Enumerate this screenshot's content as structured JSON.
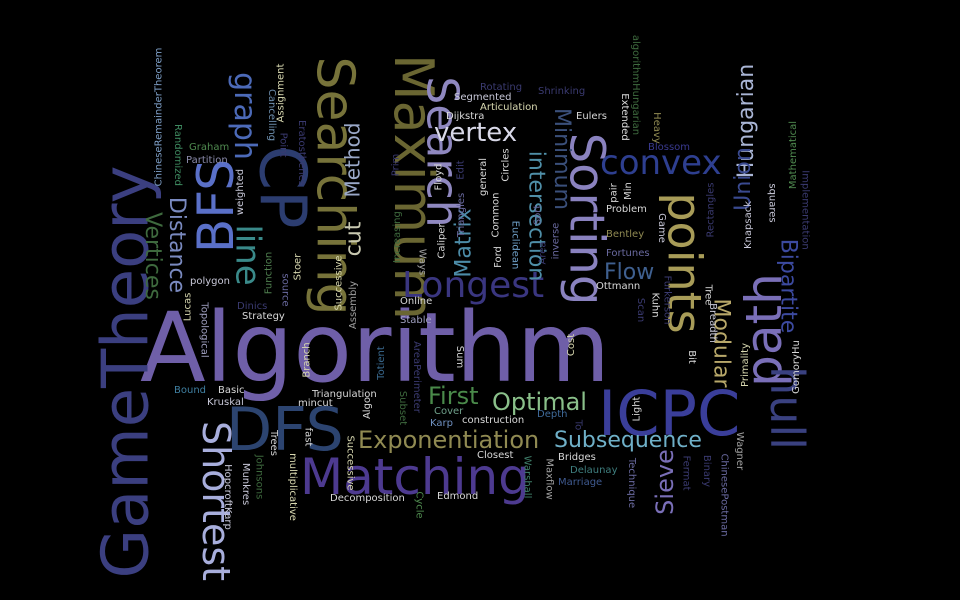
{
  "background": "#000000",
  "words": [
    {
      "text": "Algorithm",
      "color": "#6f5fa8"
    },
    {
      "text": "GameTheory",
      "color": "#3b3f80"
    },
    {
      "text": "ICPC",
      "color": "#3a3e9a"
    },
    {
      "text": "DFS",
      "color": "#2c4470"
    },
    {
      "text": "Matching",
      "color": "#4d3a90"
    },
    {
      "text": "points",
      "color": "#a89c58"
    },
    {
      "text": "Searching",
      "color": "#77733a"
    },
    {
      "text": "Maximum",
      "color": "#6a6632"
    },
    {
      "text": "Sorting",
      "color": "#8a82bf"
    },
    {
      "text": "CP",
      "color": "#2c3d70"
    },
    {
      "text": "BFS",
      "color": "#5a70c8"
    },
    {
      "text": "Search",
      "color": "#8f88c0"
    },
    {
      "text": "path",
      "color": "#7a6fb8"
    },
    {
      "text": "hull",
      "color": "#3a4180"
    },
    {
      "text": "Longest",
      "color": "#3a3680"
    },
    {
      "text": "convex",
      "color": "#2e3f90"
    },
    {
      "text": "Shortest",
      "color": "#a8aedc"
    },
    {
      "text": "line",
      "color": "#3a8a8a"
    },
    {
      "text": "graph",
      "color": "#4c6ab8"
    },
    {
      "text": "Hungarian",
      "color": "#a9b5d5"
    },
    {
      "text": "Bipartite",
      "color": "#3c4aa0"
    },
    {
      "text": "Modular",
      "color": "#b8a86a"
    },
    {
      "text": "vertex",
      "color": "#d8d8e8"
    },
    {
      "text": "Exponentiation",
      "color": "#908a52"
    },
    {
      "text": "Subsequence",
      "color": "#6fb0c8"
    },
    {
      "text": "Optimal",
      "color": "#8ac08a"
    },
    {
      "text": "First",
      "color": "#4a8a4a"
    },
    {
      "text": "Distance",
      "color": "#7a8ac0"
    },
    {
      "text": "Vertices",
      "color": "#3e6a3e"
    },
    {
      "text": "intersection",
      "color": "#4f8fa8"
    },
    {
      "text": "Minimum",
      "color": "#3a4f7a"
    },
    {
      "text": "Matrix",
      "color": "#4c8ca8"
    },
    {
      "text": "Method",
      "color": "#9aa8c8"
    },
    {
      "text": "cut",
      "color": "#c8c8b0"
    },
    {
      "text": "Flow",
      "color": "#3f6090"
    },
    {
      "text": "Union",
      "color": "#3a4a90"
    },
    {
      "text": "Sieve",
      "color": "#7a6fb8"
    },
    {
      "text": "ChineseRemainderTheorem",
      "color": "#7fa0c8"
    },
    {
      "text": "Randomized",
      "color": "#3e8a60"
    },
    {
      "text": "Graham",
      "color": "#4f8a4f"
    },
    {
      "text": "Partition",
      "color": "#8a8aaa"
    },
    {
      "text": "weighted",
      "color": "#c8c8d8"
    },
    {
      "text": "polygon",
      "color": "#c8c8d8"
    },
    {
      "text": "Assignment",
      "color": "#d8d8b0"
    },
    {
      "text": "Cancelling",
      "color": "#6f90b0"
    },
    {
      "text": "Point",
      "color": "#3a3a70"
    },
    {
      "text": "Eratosthenes",
      "color": "#3a3a70"
    },
    {
      "text": "Strategy",
      "color": "#d8d8d8"
    },
    {
      "text": "Dinics",
      "color": "#3a3a70"
    },
    {
      "text": "Lucas",
      "color": "#d8d8b0"
    },
    {
      "text": "Topological",
      "color": "#a0a0c0"
    },
    {
      "text": "Bound",
      "color": "#3f7fa0"
    },
    {
      "text": "Basic",
      "color": "#d8d8d8"
    },
    {
      "text": "Kruskal",
      "color": "#c8c8d8"
    },
    {
      "text": "Function",
      "color": "#4f7f4f"
    },
    {
      "text": "source",
      "color": "#6a6aa0"
    },
    {
      "text": "Stoer",
      "color": "#d8d8b0"
    },
    {
      "text": "Successive",
      "color": "#d8d8b0"
    },
    {
      "text": "Assembly",
      "color": "#a0a0a0"
    },
    {
      "text": "Branch",
      "color": "#d8d8b0"
    },
    {
      "text": "mincut",
      "color": "#d8d8d8"
    },
    {
      "text": "Triangulation",
      "color": "#d8d8d8"
    },
    {
      "text": "Algo",
      "color": "#d8d8d8"
    },
    {
      "text": "Prim",
      "color": "#3a3a70"
    },
    {
      "text": "Increasing",
      "color": "#3e6a3e"
    },
    {
      "text": "Online",
      "color": "#d8d8d8"
    },
    {
      "text": "Stable",
      "color": "#a0a0c0"
    },
    {
      "text": "Totient",
      "color": "#3a6a90"
    },
    {
      "text": "AreaPerimeter",
      "color": "#3a3a70"
    },
    {
      "text": "Subset",
      "color": "#3e6a3e"
    },
    {
      "text": "Cover",
      "color": "#6fa08a"
    },
    {
      "text": "Karp",
      "color": "#6f90c0"
    },
    {
      "text": "construction",
      "color": "#d8d8d8"
    },
    {
      "text": "Closest",
      "color": "#d8d8d8"
    },
    {
      "text": "Decomposition",
      "color": "#d8d8d8"
    },
    {
      "text": "Edmond",
      "color": "#d8d8d8"
    },
    {
      "text": "Cycle",
      "color": "#4f8a4f"
    },
    {
      "text": "Bridges",
      "color": "#d8d8d8"
    },
    {
      "text": "Warshall",
      "color": "#3f7f6a"
    },
    {
      "text": "Maxflow",
      "color": "#a0a0a0"
    },
    {
      "text": "Delaunay",
      "color": "#3f7f7f"
    },
    {
      "text": "Marriage",
      "color": "#3f5a90"
    },
    {
      "text": "Depth",
      "color": "#3f6a9a"
    },
    {
      "text": "To",
      "color": "#3a3a70"
    },
    {
      "text": "Light",
      "color": "#d8d8d8"
    },
    {
      "text": "Technique",
      "color": "#6a6aa0"
    },
    {
      "text": "Fermat",
      "color": "#3a3a70"
    },
    {
      "text": "Binary",
      "color": "#3a3a70"
    },
    {
      "text": "ChinesePostman",
      "color": "#6a6aa0"
    },
    {
      "text": "Wagner",
      "color": "#a0a0a0"
    },
    {
      "text": "Primality",
      "color": "#d8d8b0"
    },
    {
      "text": "GomoryHu",
      "color": "#d8d8d8"
    },
    {
      "text": "Knapsack",
      "color": "#c8c8d8"
    },
    {
      "text": "squares",
      "color": "#c8c8d8"
    },
    {
      "text": "Implementation",
      "color": "#3a3a70"
    },
    {
      "text": "Mathematical",
      "color": "#4f8a4f"
    },
    {
      "text": "Rectangles",
      "color": "#3a3a70"
    },
    {
      "text": "Game",
      "color": "#c8c8d8"
    },
    {
      "text": "Problem",
      "color": "#d8d8d8"
    },
    {
      "text": "Bentley",
      "color": "#908a52"
    },
    {
      "text": "Fortunes",
      "color": "#6a6aa0"
    },
    {
      "text": "Ottmann",
      "color": "#d8d8d8"
    },
    {
      "text": "Furkerson",
      "color": "#3a3a70"
    },
    {
      "text": "Kuhn",
      "color": "#d8d8d8"
    },
    {
      "text": "Tree",
      "color": "#d8d8d8"
    },
    {
      "text": "Breadth",
      "color": "#c8c8d8"
    },
    {
      "text": "Bit",
      "color": "#d8d8d8"
    },
    {
      "text": "Scan",
      "color": "#3a3a70"
    },
    {
      "text": "Cost",
      "color": "#d8d8b0"
    },
    {
      "text": "Sum",
      "color": "#d8d8d8"
    },
    {
      "text": "Ways",
      "color": "#a0a0a0"
    },
    {
      "text": "Caliper",
      "color": "#d8d8d8"
    },
    {
      "text": "Floyd",
      "color": "#d8d8d8"
    },
    {
      "text": "Edit",
      "color": "#3a3a70"
    },
    {
      "text": "Triangles",
      "color": "#6a6aa0"
    },
    {
      "text": "general",
      "color": "#d8d8d8"
    },
    {
      "text": "Circles",
      "color": "#d8d8d8"
    },
    {
      "text": "Common",
      "color": "#d8d8d8"
    },
    {
      "text": "Euclidean",
      "color": "#6fa0c8"
    },
    {
      "text": "Ford",
      "color": "#d8d8d8"
    },
    {
      "text": "Sort",
      "color": "#6a6aa0"
    },
    {
      "text": "Area",
      "color": "#3a3a70"
    },
    {
      "text": "inverse",
      "color": "#6a6aa0"
    },
    {
      "text": "Dijkstra",
      "color": "#d8d8d8"
    },
    {
      "text": "Articulation",
      "color": "#d8d8b0"
    },
    {
      "text": "Segmented",
      "color": "#c8c8d8"
    },
    {
      "text": "Rotating",
      "color": "#3a3a70"
    },
    {
      "text": "Shrinking",
      "color": "#3a3a70"
    },
    {
      "text": "Eulers",
      "color": "#d8d8d8"
    },
    {
      "text": "pair",
      "color": "#d8d8d8"
    },
    {
      "text": "Min",
      "color": "#d8d8d8"
    },
    {
      "text": "Extended",
      "color": "#d8d8d8"
    },
    {
      "text": "Heavy",
      "color": "#908a52"
    },
    {
      "text": "algorithmHungarian",
      "color": "#3e6a3e"
    },
    {
      "text": "Blossom",
      "color": "#3a3a90"
    },
    {
      "text": "HopcroftKarp",
      "color": "#c8c8d8"
    },
    {
      "text": "Munkres",
      "color": "#c8c8d8"
    },
    {
      "text": "Johnsons",
      "color": "#3e6a3e"
    },
    {
      "text": "multiplicative",
      "color": "#d8d8b0"
    },
    {
      "text": "Trees",
      "color": "#d8d8d8"
    },
    {
      "text": "fast",
      "color": "#d8d8d8"
    },
    {
      "text": "Successive",
      "color": "#d8d8b0"
    }
  ]
}
